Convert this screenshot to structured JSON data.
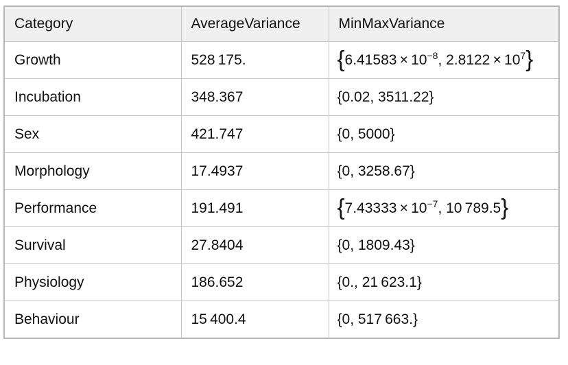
{
  "table": {
    "columns": [
      {
        "label": "Category"
      },
      {
        "label": "AverageVariance"
      },
      {
        "label": "MinMaxVariance"
      }
    ],
    "brace_open": "{",
    "brace_close": "}",
    "rows": [
      {
        "category": "Growth",
        "average": "528 175.",
        "minmax": {
          "large_braces": true,
          "segments": [
            {
              "text": "6.41583 × 10"
            },
            {
              "sup": "−8"
            },
            {
              "text": ", 2.8122 × 10"
            },
            {
              "sup": "7"
            }
          ]
        }
      },
      {
        "category": "Incubation",
        "average": "348.367",
        "minmax": {
          "large_braces": false,
          "segments": [
            {
              "text": "0.02, 3511.22"
            }
          ]
        }
      },
      {
        "category": "Sex",
        "average": "421.747",
        "minmax": {
          "large_braces": false,
          "segments": [
            {
              "text": "0, 5000"
            }
          ]
        }
      },
      {
        "category": "Morphology",
        "average": "17.4937",
        "minmax": {
          "large_braces": false,
          "segments": [
            {
              "text": "0, 3258.67"
            }
          ]
        }
      },
      {
        "category": "Performance",
        "average": "191.491",
        "minmax": {
          "large_braces": true,
          "segments": [
            {
              "text": "7.43333 × 10"
            },
            {
              "sup": "−7"
            },
            {
              "text": ", 10 789.5"
            }
          ]
        }
      },
      {
        "category": "Survival",
        "average": "27.8404",
        "minmax": {
          "large_braces": false,
          "segments": [
            {
              "text": "0, 1809.43"
            }
          ]
        }
      },
      {
        "category": "Physiology",
        "average": "186.652",
        "minmax": {
          "large_braces": false,
          "segments": [
            {
              "text": "0., 21 623.1"
            }
          ]
        }
      },
      {
        "category": "Behaviour",
        "average": "15 400.4",
        "minmax": {
          "large_braces": false,
          "segments": [
            {
              "text": "0, 517 663."
            }
          ]
        }
      }
    ]
  },
  "chart_data": {
    "type": "table",
    "columns": [
      "Category",
      "AverageVariance",
      "MinMaxVariance"
    ],
    "rows": [
      [
        "Growth",
        "528 175.",
        "{6.41583 × 10^−8, 2.8122 × 10^7}"
      ],
      [
        "Incubation",
        "348.367",
        "{0.02, 3511.22}"
      ],
      [
        "Sex",
        "421.747",
        "{0, 5000}"
      ],
      [
        "Morphology",
        "17.4937",
        "{0, 3258.67}"
      ],
      [
        "Performance",
        "191.491",
        "{7.43333 × 10^−7, 10 789.5}"
      ],
      [
        "Survival",
        "27.8404",
        "{0, 1809.43}"
      ],
      [
        "Physiology",
        "186.652",
        "{0., 21 623.1}"
      ],
      [
        "Behaviour",
        "15 400.4",
        "{0, 517 663.}"
      ]
    ],
    "colors": {
      "header_background": "#f0f0f0",
      "outer_border": "#b7b7b7",
      "inner_border": "#c6c6c6",
      "text": "#111111"
    }
  }
}
